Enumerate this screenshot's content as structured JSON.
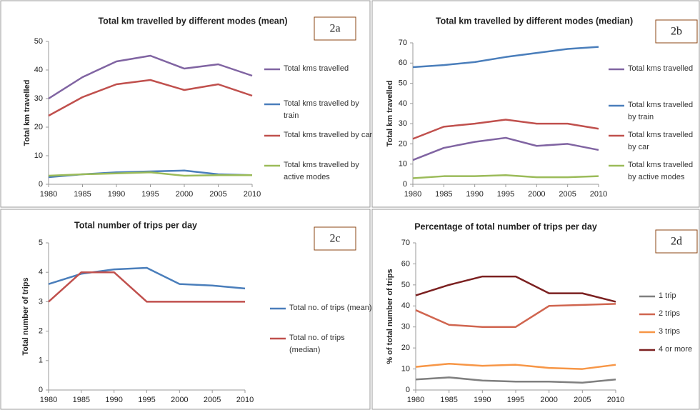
{
  "chart_data": [
    {
      "type": "line",
      "title": "Total km travelled by different modes (mean)",
      "panel_label": "2a",
      "y_label": "Total km travelled",
      "x": [
        1980,
        1985,
        1990,
        1995,
        2000,
        2005,
        2010
      ],
      "xlim": [
        1980,
        2010
      ],
      "xticks": [
        1980,
        1985,
        1990,
        1995,
        2000,
        2005,
        2010
      ],
      "ylim": [
        0,
        50
      ],
      "yticks": [
        0,
        10,
        20,
        30,
        40,
        50
      ],
      "series": [
        {
          "name": "Total kms travelled",
          "color": "#8064a2",
          "values": [
            30,
            37.5,
            43,
            45,
            40.5,
            42,
            38
          ]
        },
        {
          "name": "Total kms travelled by train",
          "color": "#4a7ebb",
          "values": [
            2.5,
            3.5,
            4.2,
            4.5,
            4.8,
            3.5,
            3.2
          ]
        },
        {
          "name": "Total kms travelled by car",
          "color": "#c0504d",
          "values": [
            24,
            30.5,
            35,
            36.5,
            33,
            35,
            31
          ]
        },
        {
          "name": "Total kms travelled by active modes",
          "color": "#9bbb59",
          "values": [
            3,
            3.5,
            3.8,
            4.2,
            3,
            3.2,
            3.2
          ]
        }
      ]
    },
    {
      "type": "line",
      "title": "Total km travelled by different modes (median)",
      "panel_label": "2b",
      "y_label": "Total km travelled",
      "x": [
        1980,
        1985,
        1990,
        1995,
        2000,
        2005,
        2010
      ],
      "xlim": [
        1980,
        2010
      ],
      "xticks": [
        1980,
        1985,
        1990,
        1995,
        2000,
        2005,
        2010
      ],
      "ylim": [
        0,
        70
      ],
      "yticks": [
        0,
        10,
        20,
        30,
        40,
        50,
        60,
        70
      ],
      "series": [
        {
          "name": "Total kms travelled",
          "color": "#8064a2",
          "values": [
            12,
            18,
            21,
            23,
            19,
            20,
            17
          ]
        },
        {
          "name": "Total kms travelled by train",
          "color": "#4a7ebb",
          "values": [
            58,
            59,
            60.5,
            63,
            65,
            67,
            68
          ]
        },
        {
          "name": "Total kms travelled by car",
          "color": "#c0504d",
          "values": [
            22.5,
            28.5,
            30,
            32,
            30,
            30,
            27.5
          ]
        },
        {
          "name": "Total kms travelled by active modes",
          "color": "#9bbb59",
          "values": [
            3,
            4,
            4,
            4.5,
            3.5,
            3.5,
            4
          ]
        }
      ]
    },
    {
      "type": "line",
      "title": "Total number of trips per day",
      "panel_label": "2c",
      "y_label": "Total number of trips",
      "x": [
        1980,
        1985,
        1990,
        1995,
        2000,
        2005,
        2010
      ],
      "xlim": [
        1980,
        2010
      ],
      "xticks": [
        1980,
        1985,
        1990,
        1995,
        2000,
        2005,
        2010
      ],
      "ylim": [
        0,
        5
      ],
      "yticks": [
        0,
        1,
        2,
        3,
        4,
        5
      ],
      "series": [
        {
          "name": "Total no. of trips (mean)",
          "color": "#4a7ebb",
          "values": [
            3.6,
            3.95,
            4.1,
            4.15,
            3.6,
            3.55,
            3.45
          ]
        },
        {
          "name": "Total no. of trips (median)",
          "color": "#c0504d",
          "values": [
            3,
            4,
            4,
            3,
            3,
            3,
            3
          ]
        }
      ]
    },
    {
      "type": "line",
      "title": "Percentage of total number of trips per day",
      "panel_label": "2d",
      "y_label": "% of total number of trips",
      "x": [
        1980,
        1985,
        1990,
        1995,
        2000,
        2005,
        2010
      ],
      "xlim": [
        1980,
        2010
      ],
      "xticks": [
        1980,
        1985,
        1990,
        1995,
        2000,
        2005,
        2010
      ],
      "ylim": [
        0,
        70
      ],
      "yticks": [
        0,
        10,
        20,
        30,
        40,
        50,
        60,
        70
      ],
      "series": [
        {
          "name": "1 trip",
          "color": "#7f7f7f",
          "values": [
            5,
            6,
            4.5,
            4,
            4,
            3.5,
            5
          ]
        },
        {
          "name": "2 trips",
          "color": "#d0654f",
          "values": [
            38,
            31,
            30,
            30,
            40,
            40.5,
            41
          ]
        },
        {
          "name": "3 trips",
          "color": "#f79646",
          "values": [
            11,
            12.5,
            11.5,
            12,
            10.5,
            10,
            12
          ]
        },
        {
          "name": "4 or more",
          "color": "#7b2020",
          "values": [
            45,
            50,
            54,
            54,
            46,
            46,
            42
          ]
        }
      ]
    }
  ]
}
